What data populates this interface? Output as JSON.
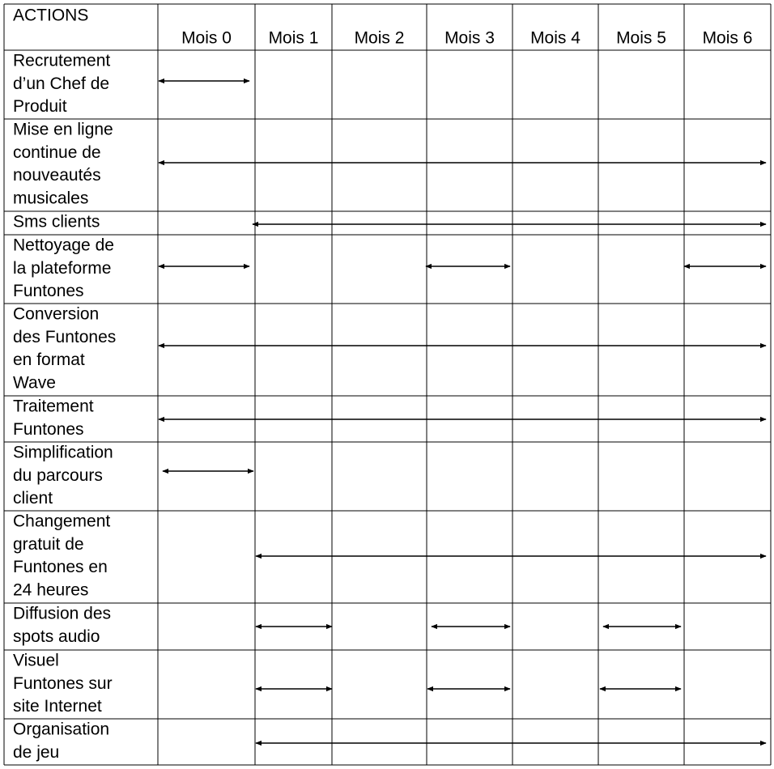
{
  "table": {
    "header": {
      "corner": "ACTIONS",
      "months": [
        "Mois 0",
        "Mois 1",
        "Mois 2",
        "Mois 3",
        "Mois 4",
        "Mois 5",
        "Mois 6"
      ]
    },
    "rows": [
      {
        "action": [
          "Recrutement",
          "d’un Chef de",
          "Produit"
        ]
      },
      {
        "action": [
          "Mise en ligne",
          "continue de",
          "nouveautés",
          "musicales"
        ]
      },
      {
        "action": [
          "Sms clients"
        ]
      },
      {
        "action": [
          "Nettoyage de",
          "la plateforme",
          "Funtones"
        ]
      },
      {
        "action": [
          "Conversion",
          "des Funtones",
          "en format",
          "Wave"
        ]
      },
      {
        "action": [
          "Traitement",
          "Funtones"
        ]
      },
      {
        "action": [
          "Simplification",
          "du parcours",
          "client"
        ]
      },
      {
        "action": [
          "Changement",
          "gratuit de",
          "Funtones en",
          "24 heures"
        ]
      },
      {
        "action": [
          "Diffusion des",
          "spots audio"
        ]
      },
      {
        "action": [
          "Visuel",
          "Funtones sur",
          "site Internet"
        ]
      },
      {
        "action": [
          "Organisation",
          "de jeu"
        ]
      }
    ]
  }
}
